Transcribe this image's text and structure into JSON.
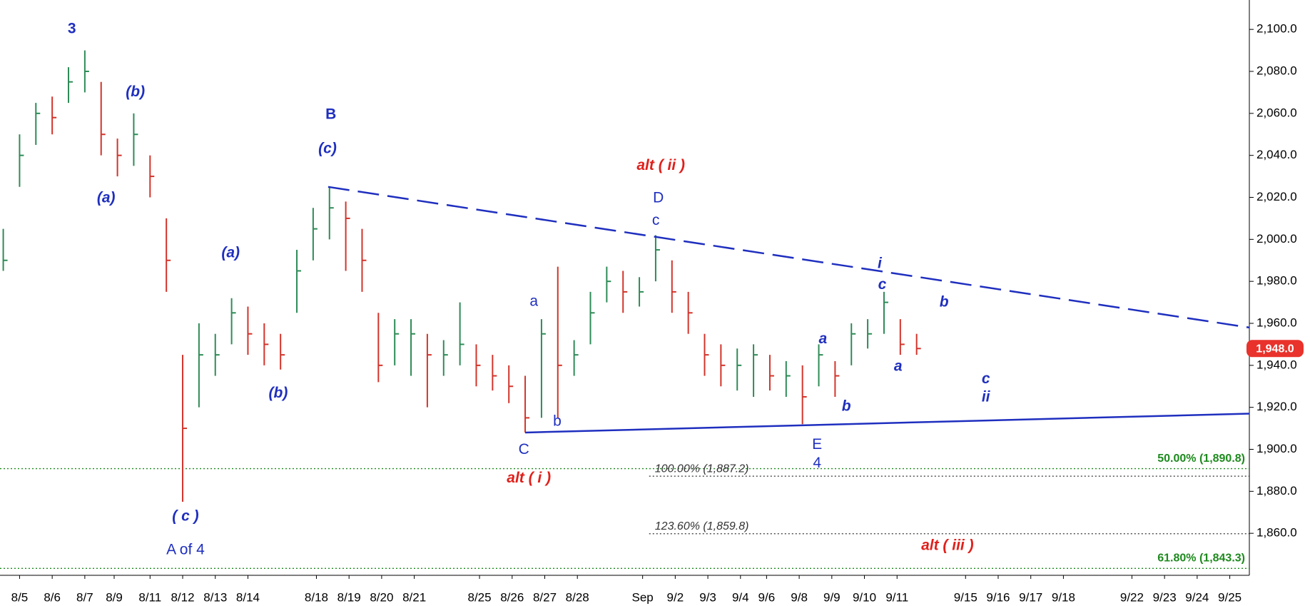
{
  "chart_data": {
    "type": "ohlc",
    "up_color": "#2e8b57",
    "down_color": "#d2342b",
    "xlim": [
      -0.6,
      37.7
    ],
    "ylim": [
      1840,
      2114
    ],
    "yticks": [
      {
        "value": 1860,
        "label": "1,860.0"
      },
      {
        "value": 1880,
        "label": "1,880.0"
      },
      {
        "value": 1900,
        "label": "1,900.0"
      },
      {
        "value": 1920,
        "label": "1,920.0"
      },
      {
        "value": 1940,
        "label": "1,940.0"
      },
      {
        "value": 1960,
        "label": "1,960.0"
      },
      {
        "value": 1980,
        "label": "1,980.0"
      },
      {
        "value": 2000,
        "label": "2,000.0"
      },
      {
        "value": 2020,
        "label": "2,020.0"
      },
      {
        "value": 2040,
        "label": "2,040.0"
      },
      {
        "value": 2060,
        "label": "2,060.0"
      },
      {
        "value": 2080,
        "label": "2,080.0"
      },
      {
        "value": 2100,
        "label": "2,100.0"
      }
    ],
    "xticks": [
      {
        "value": 0,
        "label": "8/5"
      },
      {
        "value": 1,
        "label": "8/6"
      },
      {
        "value": 2,
        "label": "8/7"
      },
      {
        "value": 2.9,
        "label": "8/9"
      },
      {
        "value": 4,
        "label": "8/11"
      },
      {
        "value": 5,
        "label": "8/12"
      },
      {
        "value": 6,
        "label": "8/13"
      },
      {
        "value": 7,
        "label": "8/14"
      },
      {
        "value": 9.1,
        "label": "8/18"
      },
      {
        "value": 10.1,
        "label": "8/19"
      },
      {
        "value": 11.1,
        "label": "8/20"
      },
      {
        "value": 12.1,
        "label": "8/21"
      },
      {
        "value": 14.1,
        "label": "8/25"
      },
      {
        "value": 15.1,
        "label": "8/26"
      },
      {
        "value": 16.1,
        "label": "8/27"
      },
      {
        "value": 17.1,
        "label": "8/28"
      },
      {
        "value": 19.1,
        "label": "Sep"
      },
      {
        "value": 20.1,
        "label": "9/2"
      },
      {
        "value": 21.1,
        "label": "9/3"
      },
      {
        "value": 22.1,
        "label": "9/4"
      },
      {
        "value": 22.9,
        "label": "9/6"
      },
      {
        "value": 23.9,
        "label": "9/8"
      },
      {
        "value": 24.9,
        "label": "9/9"
      },
      {
        "value": 25.9,
        "label": "9/10"
      },
      {
        "value": 26.9,
        "label": "9/11"
      },
      {
        "value": 29,
        "label": "9/15"
      },
      {
        "value": 30,
        "label": "9/16"
      },
      {
        "value": 31,
        "label": "9/17"
      },
      {
        "value": 32,
        "label": "9/18"
      },
      {
        "value": 34.1,
        "label": "9/22"
      },
      {
        "value": 35.1,
        "label": "9/23"
      },
      {
        "value": 36.1,
        "label": "9/24"
      },
      {
        "value": 37.1,
        "label": "9/25"
      }
    ],
    "x": [
      -0.5,
      0,
      0.5,
      1,
      1.5,
      2,
      2.5,
      3,
      3.5,
      4,
      4.5,
      5,
      5.5,
      6,
      6.5,
      7,
      7.5,
      8,
      8.5,
      9,
      9.5,
      10,
      10.5,
      11,
      11.5,
      12,
      12.5,
      13,
      13.5,
      14,
      14.5,
      15,
      15.5,
      16,
      16.5,
      17,
      17.5,
      18,
      18.5,
      19,
      19.5,
      20,
      20.5,
      21,
      21.5,
      22,
      22.5,
      23,
      23.5,
      24,
      24.5,
      25,
      25.5,
      26,
      26.5,
      27,
      27.5
    ],
    "high": [
      2005,
      2050,
      2065,
      2068,
      2082,
      2090,
      2075,
      2048,
      2060,
      2040,
      2010,
      1945,
      1960,
      1955,
      1972,
      1968,
      1960,
      1955,
      1995,
      2015,
      2025,
      2018,
      2005,
      1965,
      1962,
      1962,
      1955,
      1952,
      1970,
      1950,
      1945,
      1940,
      1935,
      1962,
      1987,
      1952,
      1975,
      1987,
      1985,
      1982,
      2002,
      1990,
      1975,
      1955,
      1950,
      1948,
      1950,
      1945,
      1942,
      1940,
      1950,
      1942,
      1960,
      1962,
      1975,
      1962,
      1955
    ],
    "low": [
      1985,
      2025,
      2045,
      2050,
      2065,
      2070,
      2040,
      2030,
      2035,
      2020,
      1975,
      1875,
      1920,
      1935,
      1950,
      1945,
      1940,
      1938,
      1965,
      1990,
      2000,
      1985,
      1975,
      1932,
      1940,
      1935,
      1920,
      1935,
      1940,
      1930,
      1928,
      1922,
      1908,
      1915,
      1915,
      1935,
      1950,
      1970,
      1965,
      1968,
      1980,
      1965,
      1955,
      1935,
      1930,
      1928,
      1925,
      1928,
      1925,
      1912,
      1930,
      1925,
      1940,
      1948,
      1955,
      1945,
      1945
    ],
    "close": [
      1990,
      2040,
      2060,
      2058,
      2075,
      2080,
      2050,
      2040,
      2050,
      2030,
      1990,
      1910,
      1945,
      1945,
      1965,
      1955,
      1950,
      1945,
      1985,
      2005,
      2015,
      2010,
      1990,
      1940,
      1955,
      1955,
      1945,
      1945,
      1950,
      1940,
      1935,
      1930,
      1915,
      1955,
      1940,
      1945,
      1965,
      1980,
      1975,
      1975,
      1995,
      1975,
      1965,
      1945,
      1940,
      1940,
      1945,
      1935,
      1935,
      1925,
      1945,
      1935,
      1955,
      1955,
      1970,
      1950,
      1948
    ],
    "last_price": {
      "value": 1948,
      "label": "1,948.0",
      "color": "#e8322b"
    },
    "trendlines": [
      {
        "x": [
          9.46,
          37.7
        ],
        "y": [
          2025,
          1958
        ],
        "color": "#1f2fbf",
        "dash": "long"
      },
      {
        "x": [
          15.5,
          37.7
        ],
        "y": [
          1908,
          1917
        ],
        "color": "#1f2fbf",
        "dash": "solid"
      }
    ],
    "levels": [
      {
        "value": 1890.8,
        "label": "50.00% (1,890.8)",
        "color": "#1e8a1e"
      },
      {
        "value": 1843.3,
        "label": "61.80% (1,843.3)",
        "color": "#1e8a1e"
      },
      {
        "value": 1887.2,
        "label": "100.00% (1,887.2)",
        "color": "#333333",
        "x_start": 19.3
      },
      {
        "value": 1859.8,
        "label": "123.60% (1,859.8)",
        "color": "#333333",
        "x_start": 19.3
      }
    ],
    "annotations": [
      {
        "text": "3",
        "color": "#1f2fbf",
        "style": "bold"
      },
      {
        "text": "(b)",
        "color": "#1f2fbf",
        "style": "italic"
      },
      {
        "text": "(a)",
        "color": "#1f2fbf",
        "style": "italic"
      },
      {
        "text": "B",
        "color": "#1f2fbf",
        "style": "bold"
      },
      {
        "text": "(c)",
        "color": "#1f2fbf",
        "style": "italic"
      },
      {
        "text": "(a)",
        "color": "#1f2fbf",
        "style": "italic"
      },
      {
        "text": "(b)",
        "color": "#1f2fbf",
        "style": "italic"
      },
      {
        "text": "( c )",
        "color": "#1f2fbf",
        "style": "italic"
      },
      {
        "text": "A of 4",
        "color": "#1f2fbf",
        "style": "normal"
      },
      {
        "text": "alt ( ii )",
        "color": "#e0201b",
        "style": "italic"
      },
      {
        "text": "D",
        "color": "#1f2fbf",
        "style": "normal"
      },
      {
        "text": "c",
        "color": "#1f2fbf",
        "style": "normal"
      },
      {
        "text": "a",
        "color": "#1f2fbf",
        "style": "normal"
      },
      {
        "text": "b",
        "color": "#1f2fbf",
        "style": "normal"
      },
      {
        "text": "C",
        "color": "#1f2fbf",
        "style": "normal"
      },
      {
        "text": "alt ( i )",
        "color": "#e0201b",
        "style": "italic"
      },
      {
        "text": "E",
        "color": "#1f2fbf",
        "style": "normal"
      },
      {
        "text": "4",
        "color": "#1f2fbf",
        "style": "normal"
      },
      {
        "text": "a",
        "color": "#1f2fbf",
        "style": "italic"
      },
      {
        "text": "b",
        "color": "#1f2fbf",
        "style": "italic"
      },
      {
        "text": "c",
        "color": "#1f2fbf",
        "style": "italic"
      },
      {
        "text": "i",
        "color": "#1f2fbf",
        "style": "italic"
      },
      {
        "text": "b",
        "color": "#1f2fbf",
        "style": "italic"
      },
      {
        "text": "a",
        "color": "#1f2fbf",
        "style": "italic"
      },
      {
        "text": "c",
        "color": "#1f2fbf",
        "style": "italic"
      },
      {
        "text": "ii",
        "color": "#1f2fbf",
        "style": "italic"
      },
      {
        "text": "alt ( iii )",
        "color": "#e0201b",
        "style": "italic"
      }
    ]
  }
}
